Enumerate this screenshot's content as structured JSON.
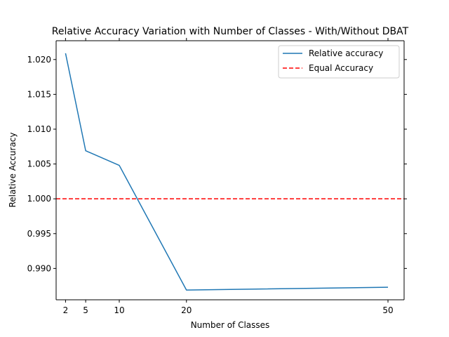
{
  "chart_data": {
    "type": "line",
    "title": "Relative Accuracy Variation with Number of Classes - With/Without DBAT",
    "xlabel": "Number of Classes",
    "ylabel": "Relative Accuracy",
    "x": [
      2,
      5,
      10,
      20,
      50
    ],
    "xticks": [
      "2",
      "5",
      "10",
      "20",
      "50"
    ],
    "xlim": [
      0.6,
      52.4
    ],
    "ylim": [
      0.9855,
      1.0227
    ],
    "yticks": [
      "0.990",
      "0.995",
      "1.000",
      "1.005",
      "1.010",
      "1.015",
      "1.020"
    ],
    "ytick_values": [
      0.99,
      0.995,
      1.0,
      1.005,
      1.01,
      1.015,
      1.02
    ],
    "series": [
      {
        "name": "Relative accuracy",
        "values": [
          1.0209,
          1.0069,
          1.0048,
          0.9869,
          0.9873
        ],
        "color": "#1f77b4",
        "style": "solid"
      }
    ],
    "reference_lines": [
      {
        "name": "Equal Accuracy",
        "y": 1.0,
        "color": "#ff0000",
        "style": "dashed"
      }
    ],
    "legend_position": "top-right",
    "grid": false
  }
}
